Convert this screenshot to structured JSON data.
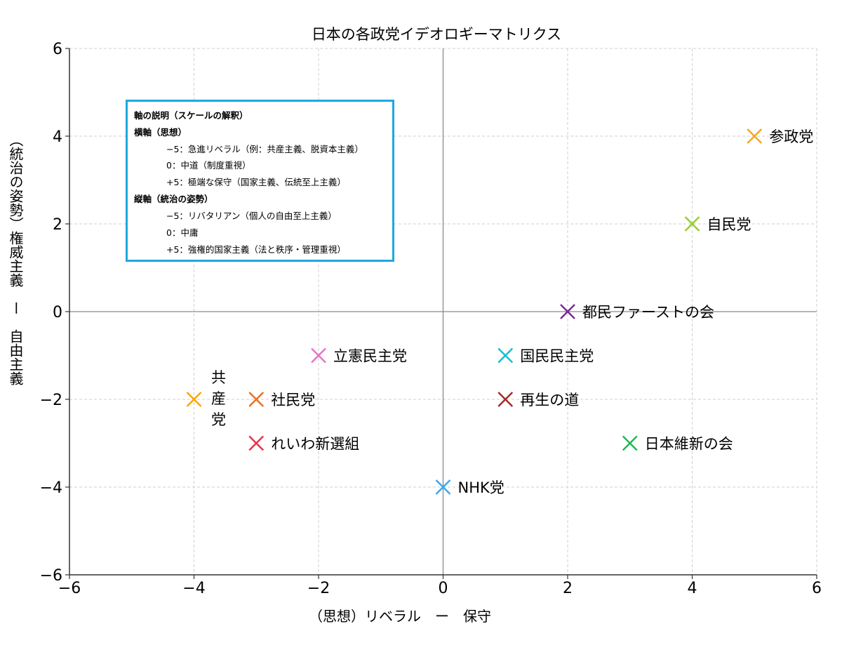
{
  "chart_data": {
    "type": "scatter",
    "title": "日本の各政党イデオロギーマトリクス",
    "xlabel": "（思想）リベラル　ー　保守",
    "ylabel": "（統治の姿勢）権威主義　ー　自由主義",
    "xlim": [
      -6,
      6
    ],
    "ylim": [
      -6,
      6
    ],
    "xticks": [
      -6,
      -4,
      -2,
      0,
      2,
      4,
      6
    ],
    "yticks": [
      -6,
      -4,
      -2,
      0,
      2,
      4,
      6
    ],
    "grid": true,
    "marker": "x",
    "points": [
      {
        "label": "参政党",
        "x": 5,
        "y": 4,
        "color": "#f5a623"
      },
      {
        "label": "自民党",
        "x": 4,
        "y": 2,
        "color": "#9acd32"
      },
      {
        "label": "都民ファーストの会",
        "x": 2,
        "y": 0,
        "color": "#7b2a8e"
      },
      {
        "label": "立憲民主党",
        "x": -2,
        "y": -1,
        "color": "#e377c2"
      },
      {
        "label": "国民民主党",
        "x": 1,
        "y": -1,
        "color": "#17becf"
      },
      {
        "label": "共産党",
        "x": -4,
        "y": -2,
        "color": "#ffa500"
      },
      {
        "label": "社民党",
        "x": -3,
        "y": -2,
        "color": "#e8702a"
      },
      {
        "label": "再生の道",
        "x": 1,
        "y": -2,
        "color": "#a52a2a"
      },
      {
        "label": "れいわ新選組",
        "x": -3,
        "y": -3,
        "color": "#e6344a"
      },
      {
        "label": "日本維新の会",
        "x": 3,
        "y": -3,
        "color": "#1db954"
      },
      {
        "label": "NHK党",
        "x": 0,
        "y": -4,
        "color": "#3aa9f0"
      }
    ]
  },
  "legend": {
    "title": "軸の説明（スケールの解釈）",
    "x_heading": "横軸（思想）",
    "x_neg": "−5：急進リベラル（例：共産主義、脱資本主義）",
    "x_zero": "0：中道（制度重視）",
    "x_pos": "+5：極端な保守（国家主義、伝統至上主義）",
    "y_heading": "縦軸（統治の姿勢）",
    "y_neg": "−5：リバタリアン（個人の自由至上主義）",
    "y_zero": "0：中庸",
    "y_pos": "+5：強権的国家主義（法と秩序・管理重視）"
  }
}
